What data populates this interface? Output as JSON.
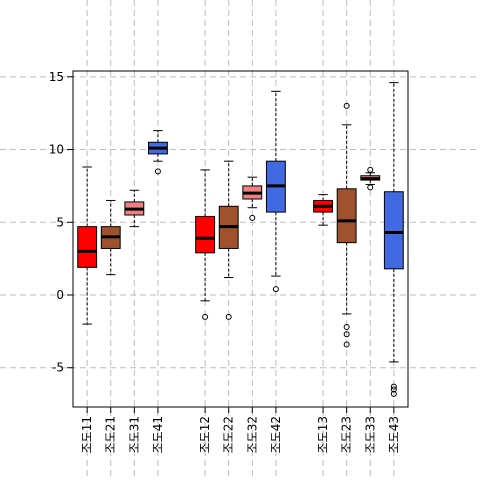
{
  "chart_data": {
    "type": "box",
    "title": "",
    "xlabel": "",
    "ylabel": "",
    "ylim": [
      -7.7,
      15.4
    ],
    "y_ticks": [
      15,
      10,
      5,
      0,
      -5
    ],
    "grid": true,
    "legend": "none",
    "colors": {
      "red": "#ff0000",
      "brown": "#a0522d",
      "pink": "#f08080",
      "blue": "#4169e1",
      "grid": "#bdbdbd"
    },
    "categories": [
      "조도11",
      "조도21",
      "조도31",
      "조도41",
      "조도12",
      "조도22",
      "조도32",
      "조도42",
      "조도13",
      "조도23",
      "조도33",
      "조도43"
    ],
    "positions": [
      1,
      2,
      3,
      4,
      6,
      7,
      8,
      9,
      11,
      12,
      13,
      14
    ],
    "boxes": [
      {
        "label": "조도11",
        "color": "red",
        "whisker_low": -2.0,
        "q1": 1.9,
        "median": 3.0,
        "q3": 4.7,
        "whisker_high": 8.8,
        "outliers": []
      },
      {
        "label": "조도21",
        "color": "brown",
        "whisker_low": 1.4,
        "q1": 3.2,
        "median": 4.0,
        "q3": 4.7,
        "whisker_high": 6.5,
        "outliers": []
      },
      {
        "label": "조도31",
        "color": "pink",
        "whisker_low": 4.7,
        "q1": 5.5,
        "median": 5.9,
        "q3": 6.4,
        "whisker_high": 7.2,
        "outliers": []
      },
      {
        "label": "조도41",
        "color": "blue",
        "whisker_low": 9.2,
        "q1": 9.7,
        "median": 10.1,
        "q3": 10.5,
        "whisker_high": 11.3,
        "outliers": [
          8.5
        ]
      },
      {
        "label": "조도12",
        "color": "red",
        "whisker_low": -0.4,
        "q1": 2.9,
        "median": 3.9,
        "q3": 5.4,
        "whisker_high": 8.6,
        "outliers": [
          -1.5
        ]
      },
      {
        "label": "조도22",
        "color": "brown",
        "whisker_low": 1.2,
        "q1": 3.2,
        "median": 4.7,
        "q3": 6.1,
        "whisker_high": 9.2,
        "outliers": [
          -1.5
        ]
      },
      {
        "label": "조도32",
        "color": "pink",
        "whisker_low": 6.0,
        "q1": 6.6,
        "median": 7.0,
        "q3": 7.5,
        "whisker_high": 8.1,
        "outliers": [
          5.3
        ]
      },
      {
        "label": "조도42",
        "color": "blue",
        "whisker_low": 1.3,
        "q1": 5.7,
        "median": 7.5,
        "q3": 9.2,
        "whisker_high": 14.0,
        "outliers": [
          0.4
        ]
      },
      {
        "label": "조도13",
        "color": "red",
        "whisker_low": 4.8,
        "q1": 5.7,
        "median": 6.1,
        "q3": 6.5,
        "whisker_high": 6.9,
        "outliers": []
      },
      {
        "label": "조도23",
        "color": "brown",
        "whisker_low": -1.3,
        "q1": 3.6,
        "median": 5.1,
        "q3": 7.3,
        "whisker_high": 11.7,
        "outliers": [
          13.0,
          -2.2,
          -2.7,
          -3.4
        ]
      },
      {
        "label": "조도33",
        "color": "pink",
        "whisker_low": 7.6,
        "q1": 7.9,
        "median": 8.0,
        "q3": 8.2,
        "whisker_high": 8.4,
        "outliers": [
          8.6,
          7.4
        ]
      },
      {
        "label": "조도43",
        "color": "blue",
        "whisker_low": -4.6,
        "q1": 1.8,
        "median": 4.3,
        "q3": 7.1,
        "whisker_high": 14.6,
        "outliers": [
          -6.3,
          -6.5,
          -6.8
        ]
      }
    ]
  }
}
